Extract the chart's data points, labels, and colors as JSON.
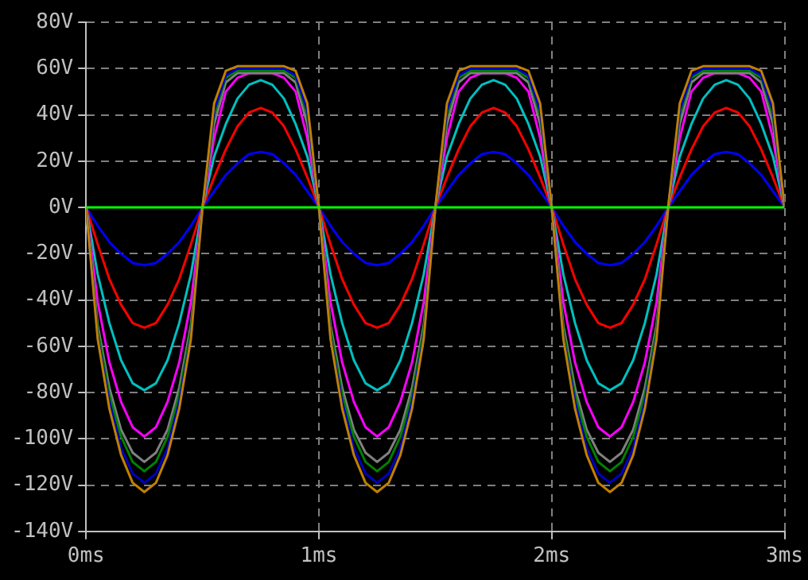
{
  "chart_data": {
    "type": "line",
    "marker": "none",
    "line_style": "solid",
    "grid": true,
    "legend": false,
    "xlim": [
      0,
      3
    ],
    "xticks": [
      {
        "value": 0,
        "label": "0ms"
      },
      {
        "value": 1,
        "label": "1ms"
      },
      {
        "value": 2,
        "label": "2ms"
      },
      {
        "value": 3,
        "label": "3ms"
      }
    ],
    "ylim": [
      -140,
      80
    ],
    "yticks": [
      {
        "value": -140,
        "label": "-140V"
      },
      {
        "value": -120,
        "label": "-120V"
      },
      {
        "value": -100,
        "label": "-100V"
      },
      {
        "value": -80,
        "label": "-80V"
      },
      {
        "value": -60,
        "label": "-60V"
      },
      {
        "value": -40,
        "label": "-40V"
      },
      {
        "value": -20,
        "label": "-20V"
      },
      {
        "value": 0,
        "label": "0V"
      },
      {
        "value": 20,
        "label": "20V"
      },
      {
        "value": 40,
        "label": "40V"
      },
      {
        "value": 60,
        "label": "60V"
      },
      {
        "value": 80,
        "label": "80V"
      }
    ],
    "x": [
      0,
      0.05,
      0.1,
      0.15,
      0.2,
      0.25,
      0.3,
      0.35,
      0.4,
      0.45,
      0.5,
      0.55,
      0.6,
      0.65,
      0.7,
      0.75,
      0.8,
      0.85,
      0.9,
      0.95,
      1,
      1.05,
      1.1,
      1.15,
      1.2,
      1.25,
      1.3,
      1.35,
      1.4,
      1.45,
      1.5,
      1.55,
      1.6,
      1.65,
      1.7,
      1.75,
      1.8,
      1.85,
      1.9,
      1.95,
      2,
      2.05,
      2.1,
      2.15,
      2.2,
      2.25,
      2.3,
      2.35,
      2.4,
      2.45,
      2.5,
      2.55,
      2.6,
      2.65,
      2.7,
      2.75,
      2.8,
      2.85,
      2.9,
      2.95,
      3
    ],
    "series": [
      {
        "color": "#00ff00",
        "x": [
          0,
          3
        ],
        "values": [
          0,
          0
        ]
      },
      {
        "color": "#c08000",
        "values": [
          0,
          -57,
          -87,
          -107,
          -119,
          -123,
          -119,
          -107,
          -87,
          -57,
          0,
          45,
          59,
          61,
          61,
          61,
          61,
          61,
          59,
          45,
          0,
          -57,
          -87,
          -107,
          -119,
          -123,
          -119,
          -107,
          -87,
          -57,
          0,
          45,
          59,
          61,
          61,
          61,
          61,
          61,
          59,
          45,
          0,
          -57,
          -87,
          -107,
          -119,
          -123,
          -119,
          -107,
          -87,
          -57,
          0,
          45,
          59,
          61,
          61,
          61,
          61,
          61,
          59,
          45,
          0
        ]
      },
      {
        "color": "#0000c0",
        "values": [
          0,
          -56,
          -84,
          -104,
          -115,
          -119,
          -115,
          -104,
          -84,
          -56,
          0,
          42,
          57,
          60,
          60,
          60,
          60,
          60,
          57,
          42,
          0,
          -56,
          -84,
          -104,
          -115,
          -119,
          -115,
          -104,
          -84,
          -56,
          0,
          42,
          57,
          60,
          60,
          60,
          60,
          60,
          57,
          42,
          0,
          -56,
          -84,
          -104,
          -115,
          -119,
          -115,
          -104,
          -84,
          -56,
          0,
          42,
          57,
          60,
          60,
          60,
          60,
          60,
          57,
          42,
          0
        ]
      },
      {
        "color": "#008000",
        "values": [
          0,
          -53,
          -81,
          -99,
          -110,
          -114,
          -110,
          -99,
          -81,
          -53,
          0,
          40,
          56,
          59,
          59,
          59,
          59,
          59,
          56,
          40,
          0,
          -53,
          -81,
          -99,
          -110,
          -114,
          -110,
          -99,
          -81,
          -53,
          0,
          40,
          56,
          59,
          59,
          59,
          59,
          59,
          56,
          40,
          0,
          -53,
          -81,
          -99,
          -110,
          -114,
          -110,
          -99,
          -81,
          -53,
          0,
          40,
          56,
          59,
          59,
          59,
          59,
          59,
          56,
          40,
          0
        ]
      },
      {
        "color": "#808080",
        "values": [
          0,
          -51,
          -78,
          -96,
          -106,
          -110,
          -106,
          -96,
          -78,
          -51,
          0,
          36,
          54,
          58,
          58,
          58,
          58,
          58,
          54,
          36,
          0,
          -51,
          -78,
          -96,
          -106,
          -110,
          -106,
          -96,
          -78,
          -51,
          0,
          36,
          54,
          58,
          58,
          58,
          58,
          58,
          54,
          36,
          0,
          -51,
          -78,
          -96,
          -106,
          -110,
          -106,
          -96,
          -78,
          -51,
          0,
          36,
          54,
          58,
          58,
          58,
          58,
          58,
          54,
          36,
          0
        ]
      },
      {
        "color": "#ff00ff",
        "values": [
          0,
          -41,
          -67,
          -84,
          -95,
          -99,
          -95,
          -84,
          -67,
          -41,
          0,
          30,
          50,
          56,
          58,
          58,
          58,
          56,
          50,
          30,
          0,
          -41,
          -67,
          -84,
          -95,
          -99,
          -95,
          -84,
          -67,
          -41,
          0,
          30,
          50,
          56,
          58,
          58,
          58,
          56,
          50,
          30,
          0,
          -41,
          -67,
          -84,
          -95,
          -99,
          -95,
          -84,
          -67,
          -41,
          0,
          30,
          50,
          56,
          58,
          58,
          58,
          56,
          50,
          30,
          0
        ]
      },
      {
        "color": "#00c0c0",
        "values": [
          0,
          -29,
          -50,
          -66,
          -76,
          -79,
          -76,
          -66,
          -50,
          -29,
          0,
          22,
          36,
          47,
          53,
          55,
          53,
          47,
          36,
          22,
          0,
          -29,
          -50,
          -66,
          -76,
          -79,
          -76,
          -66,
          -50,
          -29,
          0,
          22,
          36,
          47,
          53,
          55,
          53,
          47,
          36,
          22,
          0,
          -29,
          -50,
          -66,
          -76,
          -79,
          -76,
          -66,
          -50,
          -29,
          0,
          22,
          36,
          47,
          53,
          55,
          53,
          47,
          36,
          22,
          0
        ]
      },
      {
        "color": "#ff0000",
        "values": [
          0,
          -16,
          -31,
          -42,
          -50,
          -52,
          -50,
          -42,
          -31,
          -16,
          0,
          13,
          25,
          35,
          41,
          43,
          41,
          35,
          25,
          13,
          0,
          -16,
          -31,
          -42,
          -50,
          -52,
          -50,
          -42,
          -31,
          -16,
          0,
          13,
          25,
          35,
          41,
          43,
          41,
          35,
          25,
          13,
          0,
          -16,
          -31,
          -42,
          -50,
          -52,
          -50,
          -42,
          -31,
          -16,
          0,
          13,
          25,
          35,
          41,
          43,
          41,
          35,
          25,
          13,
          0
        ]
      },
      {
        "color": "#0000ff",
        "values": [
          0,
          -8,
          -15,
          -20,
          -24,
          -25,
          -24,
          -20,
          -15,
          -8,
          0,
          7,
          14,
          19,
          23,
          24,
          23,
          19,
          14,
          7,
          0,
          -8,
          -15,
          -20,
          -24,
          -25,
          -24,
          -20,
          -15,
          -8,
          0,
          7,
          14,
          19,
          23,
          24,
          23,
          19,
          14,
          7,
          0,
          -8,
          -15,
          -20,
          -24,
          -25,
          -24,
          -20,
          -15,
          -8,
          0,
          7,
          14,
          19,
          23,
          24,
          23,
          19,
          14,
          7,
          0
        ]
      }
    ]
  }
}
